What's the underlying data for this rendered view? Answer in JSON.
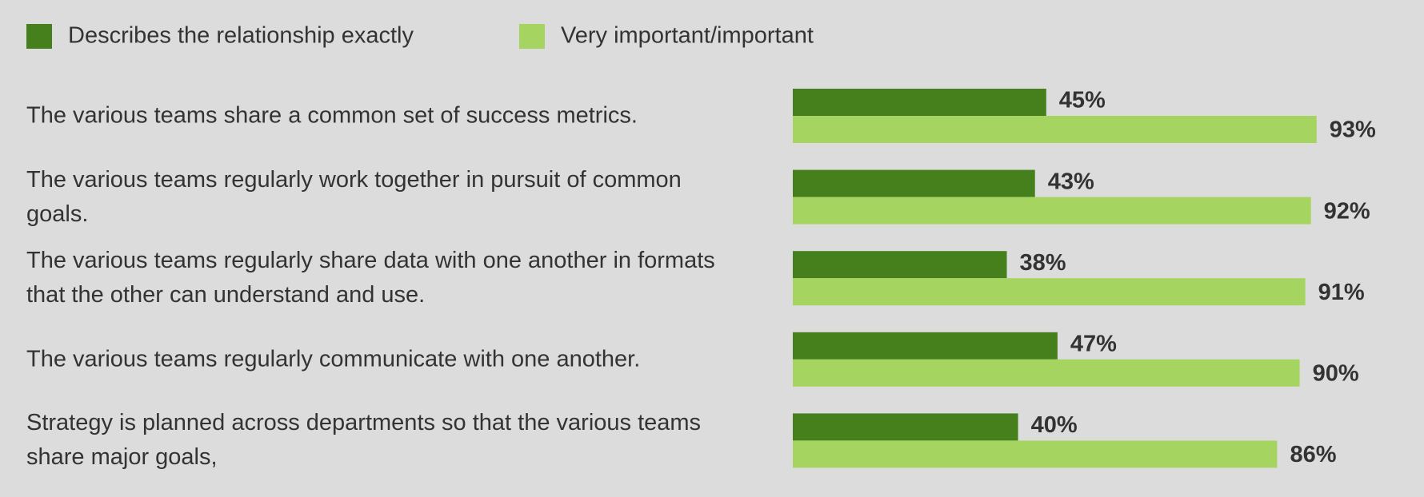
{
  "chart_data": {
    "type": "bar",
    "orientation": "horizontal",
    "categories": [
      "The various teams share a common set of success metrics.",
      "The various teams regularly work together in pursuit of common goals.",
      "The various teams regularly share data with one another in formats that the other can understand and use.",
      "The various teams regularly communicate with one another.",
      "Strategy is planned across departments so that the various teams share major goals,"
    ],
    "series": [
      {
        "name": "Describes the relationship exactly",
        "color": "#46801c",
        "values": [
          45,
          43,
          38,
          47,
          40
        ],
        "value_labels": [
          "45%",
          "43%",
          "38%",
          "47%",
          "40%"
        ]
      },
      {
        "name": "Very important/important",
        "color": "#a6d460",
        "values": [
          93,
          92,
          91,
          90,
          86
        ],
        "value_labels": [
          "93%",
          "92%",
          "91%",
          "90%",
          "86%"
        ]
      }
    ],
    "legend": "top-left"
  }
}
